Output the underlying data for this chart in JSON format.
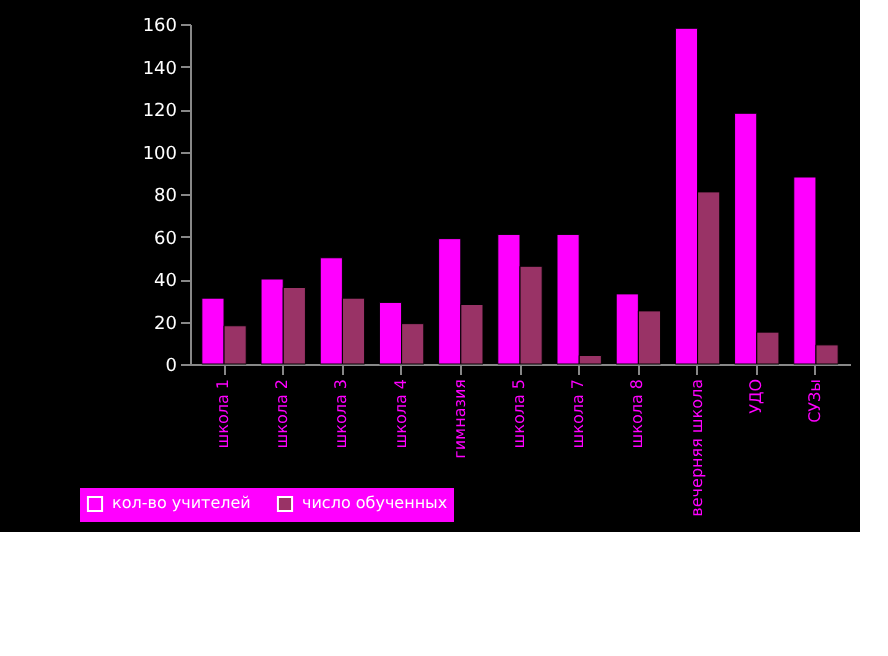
{
  "chart_data": {
    "type": "bar",
    "categories": [
      "школа 1",
      "школа 2",
      "школа 3",
      "школа 4",
      "гимназия",
      "школа 5",
      "школа 7",
      "школа 8",
      "вечерняя школа",
      "УДО",
      "СУЗы"
    ],
    "series": [
      {
        "name": "кол-во учителей",
        "color": "#ff00ff",
        "values": [
          31,
          40,
          50,
          29,
          59,
          61,
          61,
          33,
          158,
          118,
          88
        ]
      },
      {
        "name": "число обученных",
        "color": "#993366",
        "values": [
          18,
          36,
          31,
          19,
          28,
          46,
          4,
          25,
          81,
          15,
          9
        ]
      }
    ],
    "ylim": [
      0,
      160
    ],
    "yticks": [
      0,
      20,
      40,
      60,
      80,
      100,
      120,
      140,
      160
    ],
    "grid": false,
    "legend": "bottom left"
  }
}
